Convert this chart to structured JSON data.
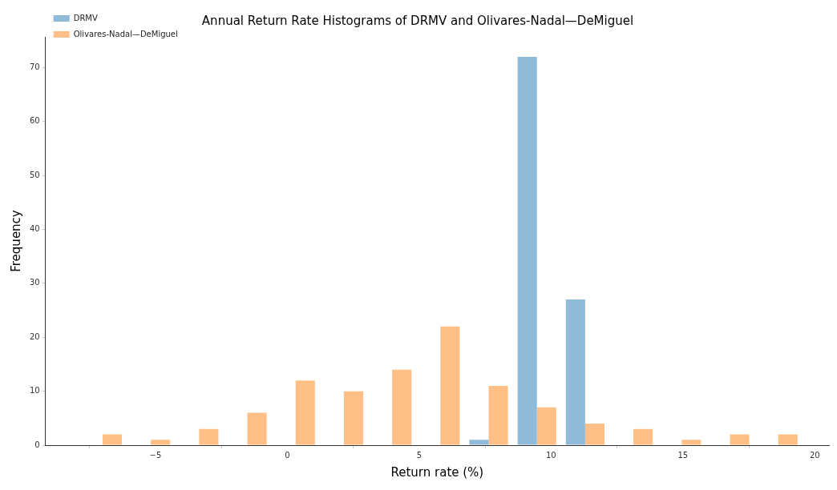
{
  "chart_data": {
    "type": "histogram",
    "title": "Annual Return Rate Histograms of DRMV and Olivares-Nadal—DeMiguel",
    "xlabel": "Return rate (%)",
    "ylabel": "Frequency",
    "bins": [
      -7.92,
      -6.09,
      -4.26,
      -2.43,
      -0.6,
      1.23,
      3.06,
      4.89,
      6.72,
      8.55,
      10.38,
      12.21,
      14.04,
      15.87,
      17.7,
      19.53
    ],
    "series": [
      {
        "name": "DRMV",
        "color": "#8fbbd9",
        "values": [
          0,
          0,
          0,
          0,
          0,
          0,
          0,
          0,
          1,
          72,
          27,
          0,
          0,
          0,
          0
        ]
      },
      {
        "name": "Olivares-Nadal—DeMiguel",
        "color": "#ffbf86",
        "values": [
          2,
          1,
          3,
          6,
          12,
          10,
          14,
          22,
          11,
          7,
          4,
          3,
          1,
          2,
          2
        ]
      }
    ],
    "xlim": [
      -9.17,
      20.54
    ],
    "xticks": [
      {
        "value": -5,
        "label": "−5"
      },
      0,
      5,
      10,
      15,
      20
    ],
    "ylim": [
      0,
      75.7
    ],
    "yticks": [
      0,
      10,
      20,
      30,
      40,
      50,
      60,
      70
    ],
    "grid": false,
    "legend": "top left"
  }
}
